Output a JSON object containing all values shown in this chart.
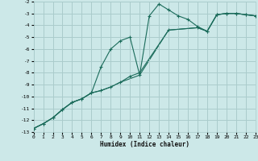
{
  "xlabel": "Humidex (Indice chaleur)",
  "bg_color": "#cce8e8",
  "grid_color": "#aacccc",
  "line_color": "#1a6b5a",
  "xlim": [
    0,
    23
  ],
  "ylim": [
    -13,
    -2
  ],
  "xticks": [
    0,
    1,
    2,
    3,
    4,
    5,
    6,
    7,
    8,
    9,
    10,
    11,
    12,
    13,
    14,
    15,
    16,
    17,
    18,
    19,
    20,
    21,
    22,
    23
  ],
  "yticks": [
    -13,
    -12,
    -11,
    -10,
    -9,
    -8,
    -7,
    -6,
    -5,
    -4,
    -3,
    -2
  ],
  "line1_x": [
    0,
    1,
    2,
    3,
    4,
    5,
    6,
    7,
    8,
    9,
    10,
    11,
    12,
    13,
    14,
    15,
    16,
    17,
    18,
    19,
    20,
    21,
    22,
    23
  ],
  "line1_y": [
    -12.7,
    -12.3,
    -11.8,
    -11.1,
    -10.5,
    -10.2,
    -9.7,
    -7.5,
    -6.0,
    -5.3,
    -5.0,
    -8.2,
    -3.2,
    -2.2,
    -2.7,
    -3.2,
    -3.5,
    -4.1,
    -4.5,
    -3.1,
    -3.0,
    -3.0,
    -3.1,
    -3.2
  ],
  "line2_x": [
    0,
    1,
    2,
    3,
    4,
    5,
    6,
    7,
    8,
    9,
    10,
    11,
    14,
    17,
    18,
    19,
    20,
    21,
    22,
    23
  ],
  "line2_y": [
    -12.7,
    -12.3,
    -11.8,
    -11.1,
    -10.5,
    -10.2,
    -9.7,
    -9.5,
    -9.2,
    -8.8,
    -8.3,
    -8.0,
    -4.4,
    -4.2,
    -4.5,
    -3.1,
    -3.0,
    -3.0,
    -3.1,
    -3.2
  ],
  "line3_x": [
    0,
    1,
    2,
    3,
    4,
    5,
    6,
    7,
    8,
    9,
    10,
    11,
    14,
    17,
    18,
    19,
    20,
    21,
    22,
    23
  ],
  "line3_y": [
    -12.7,
    -12.3,
    -11.8,
    -11.1,
    -10.5,
    -10.2,
    -9.7,
    -9.5,
    -9.2,
    -8.8,
    -8.5,
    -8.2,
    -4.4,
    -4.2,
    -4.5,
    -3.1,
    -3.0,
    -3.0,
    -3.1,
    -3.2
  ]
}
